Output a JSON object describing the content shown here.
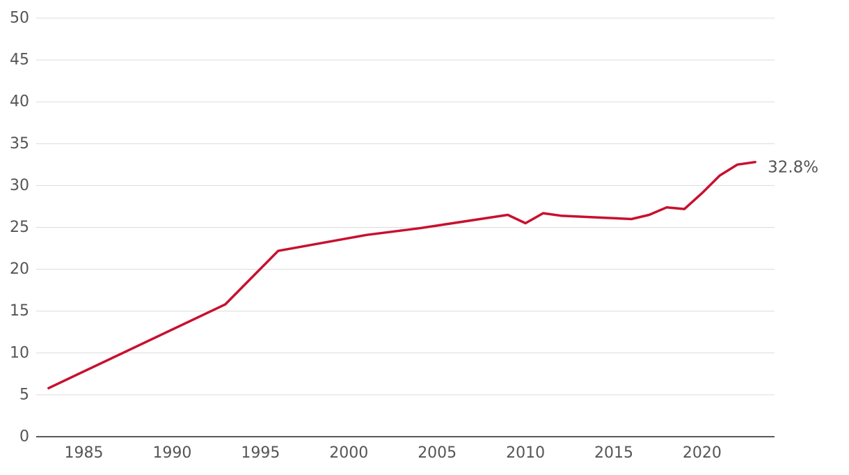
{
  "chart_data": {
    "type": "line",
    "title": "",
    "xlabel": "",
    "ylabel": "",
    "xlim": [
      1982.3,
      2024.1
    ],
    "ylim": [
      0,
      50
    ],
    "x_ticks": [
      1985,
      1990,
      1995,
      2000,
      2005,
      2010,
      2015,
      2020
    ],
    "y_ticks": [
      0,
      5,
      10,
      15,
      20,
      25,
      30,
      35,
      40,
      45,
      50
    ],
    "grid": true,
    "series": [
      {
        "color": "#c8102e",
        "x": [
          1983,
          1993,
          1996,
          2001,
          2004,
          2009,
          2010,
          2011,
          2012,
          2014,
          2016,
          2017,
          2018,
          2019,
          2020,
          2021,
          2022,
          2023
        ],
        "values": [
          5.8,
          15.8,
          22.2,
          24.1,
          24.9,
          26.5,
          25.5,
          26.7,
          26.4,
          26.2,
          26.0,
          26.5,
          27.4,
          27.2,
          29.1,
          31.2,
          32.5,
          32.8
        ]
      }
    ],
    "annotations": [
      {
        "text": "32.8%",
        "x": 2023,
        "y": 32.8
      }
    ]
  }
}
